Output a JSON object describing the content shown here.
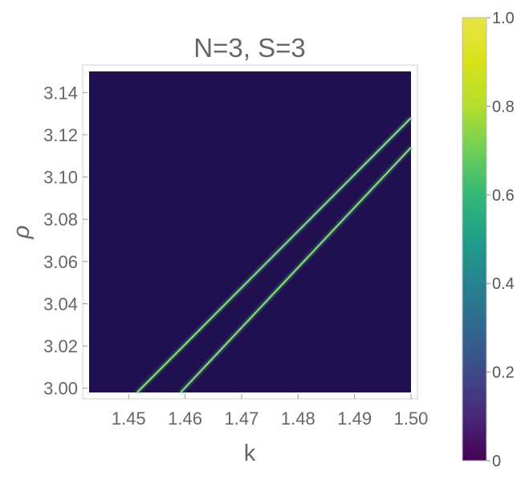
{
  "chart_data": {
    "type": "heatmap",
    "title": "N=3, S=3",
    "xlabel": "k",
    "ylabel": "ρ",
    "xlim": [
      1.443,
      1.5
    ],
    "ylim": [
      2.998,
      3.15
    ],
    "xticks": [
      {
        "value": 1.45,
        "label": "1.45"
      },
      {
        "value": 1.46,
        "label": "1.46"
      },
      {
        "value": 1.47,
        "label": "1.47"
      },
      {
        "value": 1.48,
        "label": "1.48"
      },
      {
        "value": 1.49,
        "label": "1.49"
      },
      {
        "value": 1.5,
        "label": "1.50"
      }
    ],
    "yticks": [
      {
        "value": 3.0,
        "label": "3.00"
      },
      {
        "value": 3.02,
        "label": "3.02"
      },
      {
        "value": 3.04,
        "label": "3.04"
      },
      {
        "value": 3.06,
        "label": "3.06"
      },
      {
        "value": 3.08,
        "label": "3.08"
      },
      {
        "value": 3.1,
        "label": "3.10"
      },
      {
        "value": 3.12,
        "label": "3.12"
      },
      {
        "value": 3.14,
        "label": "3.14"
      }
    ],
    "background_value": 0,
    "features": [
      {
        "type": "ridge",
        "peak_value": 0.75,
        "points": [
          [
            1.4515,
            2.998
          ],
          [
            1.5,
            3.128
          ]
        ]
      },
      {
        "type": "ridge",
        "peak_value": 0.75,
        "points": [
          [
            1.4592,
            2.998
          ],
          [
            1.5,
            3.114
          ]
        ]
      }
    ],
    "colorbar": {
      "range": [
        0,
        1
      ],
      "colormap": "viridis",
      "ticks": [
        {
          "value": 0,
          "label": "0"
        },
        {
          "value": 0.2,
          "label": "0.2"
        },
        {
          "value": 0.4,
          "label": "0.4"
        },
        {
          "value": 0.6,
          "label": "0.6"
        },
        {
          "value": 0.8,
          "label": "0.8"
        },
        {
          "value": 1.0,
          "label": "1.0"
        }
      ]
    },
    "grid": false,
    "colors": {
      "background": "#20104f",
      "ridge": "#8fe070",
      "frame": "#cccccc",
      "text": "#666666"
    }
  }
}
